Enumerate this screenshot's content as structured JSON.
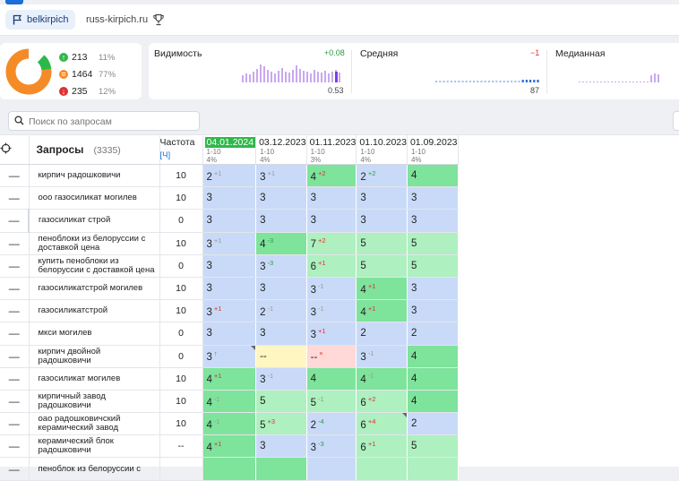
{
  "tabs": [
    {
      "label": "belkirpich",
      "active": true
    },
    {
      "label": "russ-kirpich.ru",
      "active": false
    }
  ],
  "summary": {
    "items": [
      {
        "icon": "arrow-up-icon",
        "color": "#2fb84a",
        "value": "213",
        "pct": "11%"
      },
      {
        "icon": "equals-icon",
        "color": "#f58b26",
        "value": "1464",
        "pct": "77%"
      },
      {
        "icon": "arrow-down-icon",
        "color": "#e03131",
        "value": "235",
        "pct": "12%"
      }
    ]
  },
  "metrics": [
    {
      "title": "Видимость",
      "delta": "+0.08",
      "delta_color": "#2e9a47",
      "value": "0.53"
    },
    {
      "title": "Средняя",
      "delta": "−1",
      "delta_color": "#e03131",
      "value": "87"
    },
    {
      "title": "Медианная",
      "delta": "",
      "delta_color": "#999",
      "value": ""
    }
  ],
  "search": {
    "placeholder": "Поиск по запросам"
  },
  "table": {
    "header": {
      "queries_title": "Запросы",
      "queries_count": "(3335)",
      "freq_title": "Частота",
      "freq_unit": "[Ч]",
      "dates": [
        {
          "date": "04.01.2024",
          "range": "1-10",
          "pct": "4%",
          "highlight": true
        },
        {
          "date": "03.12.2023",
          "range": "1-10",
          "pct": "4%",
          "highlight": false
        },
        {
          "date": "01.11.2023",
          "range": "1-10",
          "pct": "3%",
          "highlight": false
        },
        {
          "date": "01.10.2023",
          "range": "1-10",
          "pct": "4%",
          "highlight": false
        },
        {
          "date": "01.09.2023",
          "range": "1-10",
          "pct": "4%",
          "highlight": false
        }
      ]
    },
    "rows": [
      {
        "q": "кирпич радошковичи",
        "f": "10",
        "cells": [
          {
            "v": "2",
            "d": "+1",
            "dc": "gray",
            "bg": "blue"
          },
          {
            "v": "3",
            "d": "+1",
            "dc": "gray",
            "bg": "blue"
          },
          {
            "v": "4",
            "d": "+2",
            "dc": "down",
            "bg": "green"
          },
          {
            "v": "2",
            "d": "+2",
            "dc": "up",
            "bg": "blue"
          },
          {
            "v": "4",
            "d": "",
            "dc": "",
            "bg": "green"
          }
        ]
      },
      {
        "q": "ооо газосиликат могилев",
        "f": "10",
        "cells": [
          {
            "v": "3",
            "d": "",
            "dc": "",
            "bg": "blue"
          },
          {
            "v": "3",
            "d": "",
            "dc": "",
            "bg": "blue"
          },
          {
            "v": "3",
            "d": "",
            "dc": "",
            "bg": "blue"
          },
          {
            "v": "3",
            "d": "",
            "dc": "",
            "bg": "blue"
          },
          {
            "v": "3",
            "d": "",
            "dc": "",
            "bg": "blue"
          }
        ]
      },
      {
        "q": "газосиликат строй",
        "f": "0",
        "icons": true,
        "cells": [
          {
            "v": "3",
            "d": "",
            "dc": "",
            "bg": "blue"
          },
          {
            "v": "3",
            "d": "",
            "dc": "",
            "bg": "blue"
          },
          {
            "v": "3",
            "d": "",
            "dc": "",
            "bg": "blue"
          },
          {
            "v": "3",
            "d": "",
            "dc": "",
            "bg": "blue"
          },
          {
            "v": "3",
            "d": "",
            "dc": "",
            "bg": "blue"
          }
        ]
      },
      {
        "q": "пеноблоки из белоруссии с доставкой цена",
        "f": "10",
        "cells": [
          {
            "v": "3",
            "d": "+1",
            "dc": "gray",
            "bg": "blue"
          },
          {
            "v": "4",
            "d": "-3",
            "dc": "up",
            "bg": "green"
          },
          {
            "v": "7",
            "d": "+2",
            "dc": "down",
            "bg": "lgreen"
          },
          {
            "v": "5",
            "d": "",
            "dc": "",
            "bg": "lgreen"
          },
          {
            "v": "5",
            "d": "",
            "dc": "",
            "bg": "lgreen"
          }
        ]
      },
      {
        "q": "купить пеноблоки из белоруссии с доставкой цена",
        "f": "0",
        "cells": [
          {
            "v": "3",
            "d": "",
            "dc": "",
            "bg": "blue"
          },
          {
            "v": "3",
            "d": "-3",
            "dc": "up",
            "bg": "blue"
          },
          {
            "v": "6",
            "d": "+1",
            "dc": "down",
            "bg": "lgreen"
          },
          {
            "v": "5",
            "d": "",
            "dc": "",
            "bg": "lgreen"
          },
          {
            "v": "5",
            "d": "",
            "dc": "",
            "bg": "lgreen"
          }
        ]
      },
      {
        "q": "газосиликатстрой могилев",
        "f": "10",
        "cells": [
          {
            "v": "3",
            "d": "",
            "dc": "",
            "bg": "blue"
          },
          {
            "v": "3",
            "d": "",
            "dc": "",
            "bg": "blue"
          },
          {
            "v": "3",
            "d": "-1",
            "dc": "gray",
            "bg": "blue"
          },
          {
            "v": "4",
            "d": "+1",
            "dc": "down",
            "bg": "green"
          },
          {
            "v": "3",
            "d": "",
            "dc": "",
            "bg": "blue"
          }
        ]
      },
      {
        "q": "газосиликатстрой",
        "f": "10",
        "cells": [
          {
            "v": "3",
            "d": "+1",
            "dc": "down",
            "bg": "blue"
          },
          {
            "v": "2",
            "d": "-1",
            "dc": "gray",
            "bg": "blue"
          },
          {
            "v": "3",
            "d": "-1",
            "dc": "gray",
            "bg": "blue"
          },
          {
            "v": "4",
            "d": "+1",
            "dc": "down",
            "bg": "green"
          },
          {
            "v": "3",
            "d": "",
            "dc": "",
            "bg": "blue"
          }
        ]
      },
      {
        "q": "мкси могилев",
        "f": "0",
        "cells": [
          {
            "v": "3",
            "d": "",
            "dc": "",
            "bg": "blue"
          },
          {
            "v": "3",
            "d": "",
            "dc": "",
            "bg": "blue"
          },
          {
            "v": "3",
            "d": "+1",
            "dc": "down",
            "bg": "blue"
          },
          {
            "v": "2",
            "d": "",
            "dc": "",
            "bg": "blue"
          },
          {
            "v": "2",
            "d": "",
            "dc": "",
            "bg": "blue"
          }
        ]
      },
      {
        "q": "кирпич двойной радошковичи",
        "f": "0",
        "cells": [
          {
            "v": "3",
            "d": "↑",
            "dc": "up",
            "bg": "blue",
            "corner": true
          },
          {
            "v": "--",
            "d": "",
            "dc": "",
            "bg": "yellow"
          },
          {
            "v": "--",
            "d": "×",
            "dc": "down",
            "bg": "pink"
          },
          {
            "v": "3",
            "d": "-1",
            "dc": "gray",
            "bg": "blue"
          },
          {
            "v": "4",
            "d": "",
            "dc": "",
            "bg": "green"
          }
        ]
      },
      {
        "q": "газосиликат могилев",
        "f": "10",
        "cells": [
          {
            "v": "4",
            "d": "+1",
            "dc": "down",
            "bg": "green"
          },
          {
            "v": "3",
            "d": "-1",
            "dc": "gray",
            "bg": "blue"
          },
          {
            "v": "4",
            "d": "",
            "dc": "",
            "bg": "green"
          },
          {
            "v": "4",
            "d": "-1",
            "dc": "gray",
            "bg": "green"
          },
          {
            "v": "4",
            "d": "",
            "dc": "",
            "bg": "green"
          }
        ]
      },
      {
        "q": "кирпичный завод радошковичи",
        "f": "10",
        "cells": [
          {
            "v": "4",
            "d": "-1",
            "dc": "gray",
            "bg": "green"
          },
          {
            "v": "5",
            "d": "",
            "dc": "",
            "bg": "lgreen"
          },
          {
            "v": "5",
            "d": "-1",
            "dc": "gray",
            "bg": "lgreen"
          },
          {
            "v": "6",
            "d": "+2",
            "dc": "down",
            "bg": "lgreen"
          },
          {
            "v": "4",
            "d": "",
            "dc": "",
            "bg": "green"
          }
        ]
      },
      {
        "q": "оао радошковичский керамический завод",
        "f": "10",
        "cells": [
          {
            "v": "4",
            "d": "-1",
            "dc": "gray",
            "bg": "green"
          },
          {
            "v": "5",
            "d": "+3",
            "dc": "down",
            "bg": "lgreen"
          },
          {
            "v": "2",
            "d": "-4",
            "dc": "up",
            "bg": "blue"
          },
          {
            "v": "6",
            "d": "+4",
            "dc": "down",
            "bg": "lgreen",
            "corner": true
          },
          {
            "v": "2",
            "d": "",
            "dc": "",
            "bg": "blue"
          }
        ]
      },
      {
        "q": "керамический блок радошковичи",
        "f": "--",
        "cells": [
          {
            "v": "4",
            "d": "+1",
            "dc": "down",
            "bg": "green"
          },
          {
            "v": "3",
            "d": "",
            "dc": "",
            "bg": "blue"
          },
          {
            "v": "3",
            "d": "-3",
            "dc": "up",
            "bg": "blue"
          },
          {
            "v": "6",
            "d": "+1",
            "dc": "down",
            "bg": "lgreen"
          },
          {
            "v": "5",
            "d": "",
            "dc": "",
            "bg": "lgreen"
          }
        ]
      },
      {
        "q": "пеноблок из белоруссии с",
        "f": "",
        "cells": [
          {
            "v": "",
            "d": "",
            "dc": "",
            "bg": "green"
          },
          {
            "v": "",
            "d": "",
            "dc": "",
            "bg": "green"
          },
          {
            "v": "",
            "d": "",
            "dc": "",
            "bg": "blue"
          },
          {
            "v": "",
            "d": "",
            "dc": "",
            "bg": "lgreen"
          },
          {
            "v": "",
            "d": "",
            "dc": "",
            "bg": "lgreen"
          }
        ]
      }
    ]
  }
}
